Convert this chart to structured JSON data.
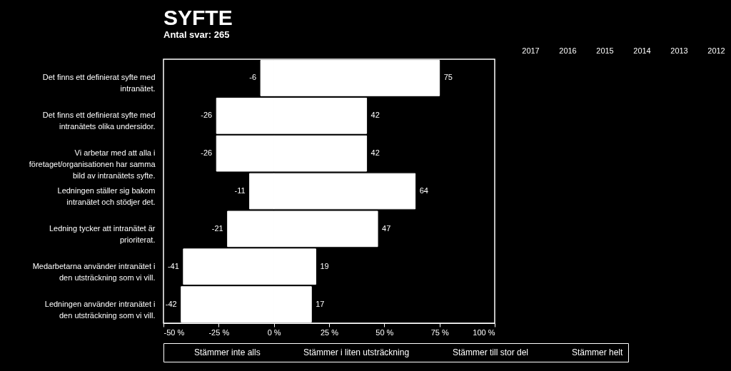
{
  "chart_data": {
    "type": "bar",
    "orientation": "horizontal",
    "title": "SYFTE",
    "subtitle": "Antal svar: 265",
    "categories": [
      "Det finns ett definierat syfte med intranätet.",
      "Det finns ett definierat syfte med intranätets olika undersidor.",
      "Vi arbetar med att alla i företaget/organisationen har samma bild av intranätets syfte.",
      "Ledningen ställer sig bakom intranätet och stödjer det.",
      "Ledning tycker att intranätet är prioriterat.",
      "Medarbetarna använder intranätet i den utsträckning som vi vill.",
      "Ledningen använder intranätet i den utsträckning som vi vill."
    ],
    "series": [
      {
        "color": "#ffffff",
        "values": [
          -6,
          -26,
          -26,
          -11,
          -21,
          -41,
          -42
        ]
      },
      {
        "color": "#ffffff",
        "values": [
          75,
          42,
          42,
          64,
          47,
          19,
          17
        ]
      }
    ],
    "data_labels": true,
    "stacked": true,
    "xlim": [
      -50,
      100
    ],
    "xticks": [
      {
        "value": -50,
        "label": "-50 %"
      },
      {
        "value": -25,
        "label": "-25 %"
      },
      {
        "value": 0,
        "label": "0 %"
      },
      {
        "value": 25,
        "label": "25 %"
      },
      {
        "value": 50,
        "label": "50 %"
      },
      {
        "value": 75,
        "label": "75 %"
      },
      {
        "value": 100,
        "label": "100 %"
      }
    ],
    "grid": false,
    "annotations": [
      "2017",
      "2016",
      "2015",
      "2014",
      "2013",
      "2012",
      "Stämmer inte alls",
      "Stämmer i liten utsträckning",
      "Stämmer till stor del",
      "Stämmer helt"
    ]
  }
}
